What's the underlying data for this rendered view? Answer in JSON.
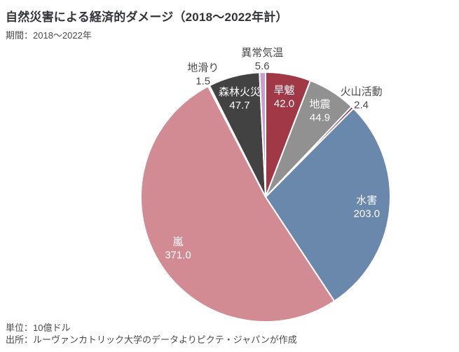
{
  "header": {
    "title": "自然災害による経済的ダメージ（2018～2022年計）",
    "period": "期間：2018～2022年"
  },
  "footer": {
    "unit": "単位：10億ドル",
    "source": "出所：ルーヴァンカトリック大学のデータよりピクテ・ジャパンが作成"
  },
  "chart_data": {
    "type": "pie",
    "title": "自然災害による経済的ダメージ（2018～2022年計）",
    "period": "2018～2022年",
    "unit": "10億ドル",
    "start_angle_deg": 0,
    "direction": "clockwise",
    "slices": [
      {
        "id": "drought",
        "label": "旱魃",
        "value": 42.0,
        "color": "#a13845",
        "label_placement": "inside"
      },
      {
        "id": "earthquake",
        "label": "地震",
        "value": 44.9,
        "color": "#919191",
        "label_placement": "inside"
      },
      {
        "id": "volcanic-activity",
        "label": "火山活動",
        "value": 2.4,
        "color": "#7e2c59",
        "label_placement": "outside"
      },
      {
        "id": "flood",
        "label": "水害",
        "value": 203.0,
        "color": "#6a87ac",
        "label_placement": "inside"
      },
      {
        "id": "storm",
        "label": "嵐",
        "value": 371.0,
        "color": "#d28b92",
        "label_placement": "inside"
      },
      {
        "id": "landslide",
        "label": "地滑り",
        "value": 1.5,
        "color": "#d9d9d9",
        "label_placement": "outside"
      },
      {
        "id": "forest-fire",
        "label": "森林火災",
        "value": 47.7,
        "color": "#424242",
        "label_placement": "inside"
      },
      {
        "id": "abnormal-temperature",
        "label": "異常気温",
        "value": 5.6,
        "color": "#c5a0cc",
        "label_placement": "outside"
      }
    ],
    "colors": {
      "inside_label": "#ffffff",
      "outside_label": "#4a4a4a",
      "slice_border": "#ffffff"
    }
  }
}
